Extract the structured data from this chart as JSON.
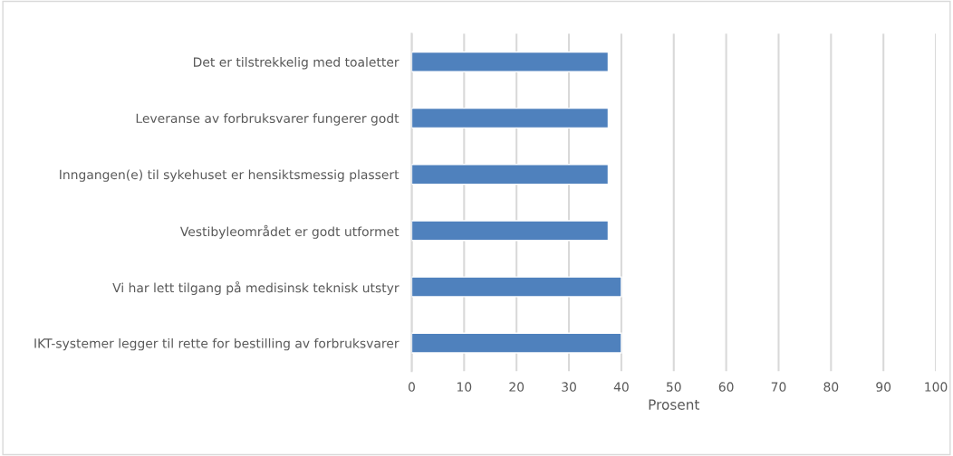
{
  "chart_data": {
    "type": "bar",
    "orientation": "horizontal",
    "categories": [
      "Det er tilstrekkelig med toaletter",
      "Leveranse av forbruksvarer fungerer godt",
      "Inngangen(e) til sykehuset er hensiktsmessig plassert",
      "Vestibyleområdet er godt utformet",
      "Vi har lett tilgang på medisinsk teknisk utstyr",
      "IKT-systemer legger til rette for bestilling av forbruksvarer"
    ],
    "values": [
      37.5,
      37.5,
      37.5,
      37.5,
      40,
      40
    ],
    "color": "#4f81bd",
    "xlabel": "Prosent",
    "xlim": [
      0,
      100
    ],
    "xticks": [
      0,
      10,
      20,
      30,
      40,
      50,
      60,
      70,
      80,
      90,
      100
    ],
    "grid": "x",
    "legend": false
  }
}
